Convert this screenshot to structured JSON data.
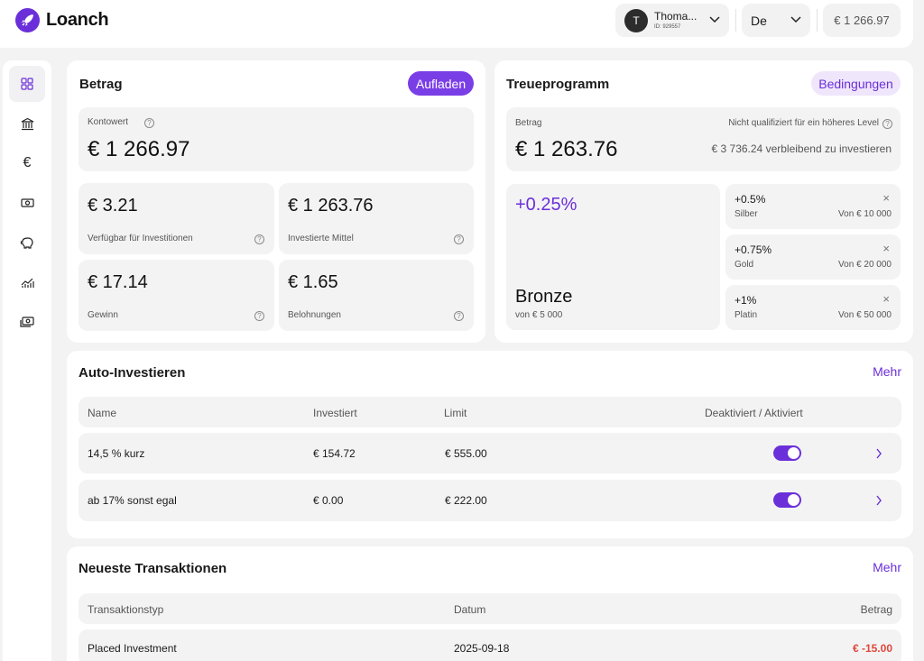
{
  "app": {
    "name": "Loanch",
    "logo_icon": "rocket-icon"
  },
  "header": {
    "user": {
      "initial": "T",
      "name": "Thoma...",
      "id": "ID: 929557"
    },
    "language": "De",
    "balance": "€ 1 266.97"
  },
  "sidebar": {
    "items": [
      {
        "icon": "dashboard-icon",
        "active": true
      },
      {
        "icon": "bank-icon"
      },
      {
        "icon": "euro-icon"
      },
      {
        "icon": "banknote-icon"
      },
      {
        "icon": "piggy-bank-icon"
      },
      {
        "icon": "chart-icon"
      },
      {
        "icon": "money-icon"
      }
    ]
  },
  "betrag": {
    "title": "Betrag",
    "top_up_label": "Aufladen",
    "account_value_label": "Kontowert",
    "account_value": "€ 1 266.97",
    "tiles": [
      {
        "value": "€ 3.21",
        "label": "Verfügbar für Investitionen"
      },
      {
        "value": "€ 1 263.76",
        "label": "Investierte Mittel"
      },
      {
        "value": "€ 17.14",
        "label": "Gewinn"
      },
      {
        "value": "€ 1.65",
        "label": "Belohnungen"
      }
    ]
  },
  "loyalty": {
    "title": "Treueprogramm",
    "conditions_label": "Bedingungen",
    "amount_label": "Betrag",
    "amount": "€ 1 263.76",
    "qualify_note": "Nicht qualifiziert für ein höheres Level",
    "remaining": "€ 3 736.24 verbleibend zu investieren",
    "current": {
      "rate": "+0.25%",
      "level": "Bronze",
      "from": "von € 5 000"
    },
    "levels": [
      {
        "rate": "+0.5%",
        "name": "Silber",
        "from": "Von € 10 000"
      },
      {
        "rate": "+0.75%",
        "name": "Gold",
        "from": "Von € 20 000"
      },
      {
        "rate": "+1%",
        "name": "Platin",
        "from": "Von € 50 000"
      }
    ]
  },
  "auto_invest": {
    "title": "Auto-Investieren",
    "more": "Mehr",
    "columns": [
      "Name",
      "Investiert",
      "Limit",
      "Deaktiviert / Aktiviert"
    ],
    "rows": [
      {
        "name": "14,5 % kurz",
        "invested": "€ 154.72",
        "limit": "€ 555.00",
        "active": true
      },
      {
        "name": "ab 17% sonst egal",
        "invested": "€ 0.00",
        "limit": "€ 222.00",
        "active": true
      }
    ]
  },
  "transactions": {
    "title": "Neueste Transaktionen",
    "more": "Mehr",
    "columns": [
      "Transaktionstyp",
      "Datum",
      "Betrag"
    ],
    "rows": [
      {
        "type": "Placed Investment",
        "date": "2025-09-18",
        "amount": "€ -15.00"
      }
    ]
  },
  "colors": {
    "accent": "#6b2fd9",
    "negative": "#e0463b"
  }
}
